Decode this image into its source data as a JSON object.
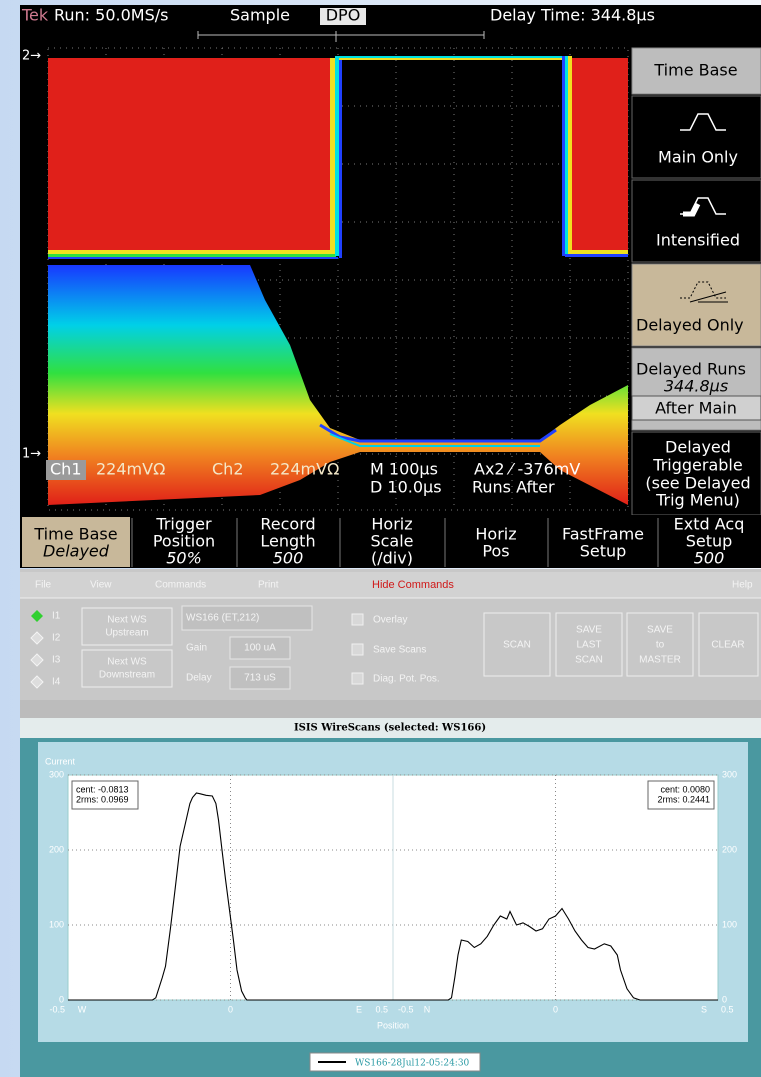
{
  "scope": {
    "status": {
      "brand": "Tek",
      "run": "Run: 50.0MS/s",
      "mode": "Sample",
      "dpo": "DPO",
      "delay_time": "Delay Time: 344.8µs"
    },
    "markers": [
      "2→",
      "1→"
    ],
    "readout": {
      "ch1": "Ch1",
      "ch1_scale": "224mVΩ",
      "ch2": "Ch2",
      "ch2_scale": "224mVΩ",
      "main": "M 100µs",
      "trigger": "Ax2 ⁄ -376mV",
      "delayed": "D 10.0µs",
      "runs_after": "Runs After"
    },
    "side_menu": [
      [
        "Time Base"
      ],
      [
        "Main Only"
      ],
      [
        "Intensified"
      ],
      [
        "Delayed Only"
      ],
      [
        "Delayed Runs",
        "344.8µs",
        "After Main"
      ],
      [
        "Delayed",
        "Triggerable",
        "(see Delayed",
        "Trig Menu)"
      ]
    ],
    "bottom_menu": [
      [
        "Time Base",
        "Delayed"
      ],
      [
        "Trigger",
        "Position",
        "50%"
      ],
      [
        "Record",
        "Length",
        "500"
      ],
      [
        "Horiz",
        "Scale",
        "(/div)"
      ],
      [
        "Horiz",
        "Pos"
      ],
      [
        "FastFrame",
        "Setup"
      ],
      [
        "Extd Acq",
        "Setup",
        "500"
      ]
    ]
  },
  "control_panel": {
    "menu": [
      "File",
      "View",
      "Commands",
      "Print",
      "Hide Commands",
      "Help"
    ],
    "radios": [
      "I1",
      "I2",
      "I3",
      "I4"
    ],
    "nav_buttons": [
      [
        "Next WS",
        "Upstream"
      ],
      [
        "Next WS",
        "Downstream"
      ]
    ],
    "wire": "WS166 (ET,212)",
    "gain": {
      "label": "Gain",
      "value": "100 uA"
    },
    "delay": {
      "label": "Delay",
      "value": "713 uS"
    },
    "checkboxes": [
      "Overlay",
      "Save Scans",
      "Diag. Pot. Pos."
    ],
    "buttons": [
      [
        "SCAN"
      ],
      [
        "SAVE",
        "LAST",
        "SCAN"
      ],
      [
        "SAVE",
        "to",
        "MASTER"
      ],
      [
        "CLEAR"
      ]
    ]
  },
  "chart_data": {
    "type": "line",
    "title": "ISIS WireScans (selected: WS166)",
    "ylabel": "Current",
    "xlabel": "Position",
    "ylim": [
      0,
      300
    ],
    "yticks": [
      0,
      100,
      200,
      300
    ],
    "grid": true,
    "series_name": "WS166-28Jul12-05:24:30",
    "color": "#000000",
    "panels": [
      {
        "xlim": [
          -0.5,
          0.5
        ],
        "xticks": [
          -0.5,
          0,
          0.5
        ],
        "directions": [
          "W",
          "E"
        ],
        "annotation": [
          "cent: -0.0813",
          "2rms: 0.0969"
        ],
        "x": [
          -0.5,
          -0.3,
          -0.24,
          -0.23,
          -0.21,
          -0.2,
          -0.185,
          -0.17,
          -0.155,
          -0.139,
          -0.125,
          -0.117,
          -0.105,
          -0.093,
          -0.075,
          -0.056,
          -0.045,
          -0.037,
          -0.026,
          -0.015,
          -0.003,
          0.009,
          0.02,
          0.034,
          0.045,
          0.05,
          0.06,
          0.5
        ],
        "values": [
          0,
          0,
          0,
          3,
          30,
          45,
          95,
          150,
          205,
          235,
          262,
          270,
          276,
          275,
          273,
          272,
          262,
          240,
          200,
          160,
          120,
          80,
          40,
          12,
          3,
          0,
          0,
          0
        ]
      },
      {
        "xlim": [
          -0.5,
          0.5
        ],
        "xticks": [
          -0.5,
          0,
          0.5
        ],
        "directions": [
          "N",
          "S"
        ],
        "annotation": [
          "cent: 0.0080",
          "2rms: 0.2441"
        ],
        "x": [
          -0.5,
          -0.33,
          -0.32,
          -0.31,
          -0.3,
          -0.29,
          -0.27,
          -0.25,
          -0.23,
          -0.21,
          -0.19,
          -0.17,
          -0.15,
          -0.14,
          -0.12,
          -0.1,
          -0.08,
          -0.06,
          -0.04,
          -0.02,
          0,
          0.02,
          0.04,
          0.06,
          0.08,
          0.1,
          0.12,
          0.15,
          0.17,
          0.19,
          0.2,
          0.22,
          0.24,
          0.26,
          0.5
        ],
        "values": [
          0,
          0,
          3,
          30,
          60,
          80,
          78,
          70,
          75,
          85,
          100,
          112,
          108,
          118,
          100,
          103,
          98,
          92,
          95,
          108,
          112,
          122,
          108,
          92,
          80,
          70,
          68,
          75,
          72,
          60,
          40,
          15,
          3,
          0,
          0
        ]
      }
    ]
  }
}
